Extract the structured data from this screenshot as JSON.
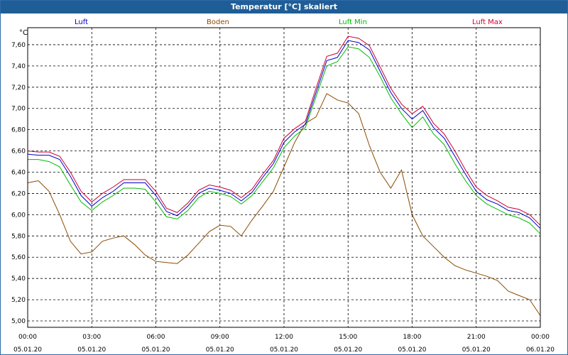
{
  "window": {
    "title": "Temperatur [°C] skaliert"
  },
  "colors": {
    "luft": "#0000cc",
    "boden": "#8b4a00",
    "luft_min": "#00bb00",
    "luft_max": "#cc0033",
    "title_bar": "#1f5d96",
    "grid": "#000000"
  },
  "chart_data": {
    "type": "line",
    "title": "Temperatur [°C] skaliert",
    "ylabel": "°C",
    "xlabel": "",
    "ylim": [
      4.94,
      7.76
    ],
    "yticks": [
      "5,00",
      "5,20",
      "5,40",
      "5,60",
      "5,80",
      "6,00",
      "6,20",
      "6,40",
      "6,60",
      "6,80",
      "7,00",
      "7,20",
      "7,40",
      "7,60"
    ],
    "xticks": [
      {
        "time": "00:00",
        "date": "05.01.20"
      },
      {
        "time": "03:00",
        "date": "05.01.20"
      },
      {
        "time": "06:00",
        "date": "05.01.20"
      },
      {
        "time": "09:00",
        "date": "05.01.20"
      },
      {
        "time": "12:00",
        "date": "05.01.20"
      },
      {
        "time": "15:00",
        "date": "05.01.20"
      },
      {
        "time": "18:00",
        "date": "05.01.20"
      },
      {
        "time": "21:00",
        "date": "05.01.20"
      },
      {
        "time": "00:00",
        "date": "06.01.20"
      }
    ],
    "grid": true,
    "legend_position": "top",
    "x_hours": [
      0,
      0.5,
      1,
      1.5,
      2,
      2.5,
      3,
      3.5,
      4,
      4.5,
      5,
      5.5,
      6,
      6.5,
      7,
      7.5,
      8,
      8.5,
      9,
      9.5,
      10,
      10.5,
      11,
      11.5,
      12,
      12.5,
      13,
      13.5,
      14,
      14.5,
      15,
      15.5,
      16,
      16.5,
      17,
      17.5,
      18,
      18.5,
      19,
      19.5,
      20,
      20.5,
      21,
      21.5,
      22,
      22.5,
      23,
      23.5,
      24
    ],
    "series": [
      {
        "name": "Luft",
        "color": "#0000cc",
        "values": [
          6.57,
          6.56,
          6.56,
          6.52,
          6.36,
          6.18,
          6.08,
          6.16,
          6.22,
          6.3,
          6.3,
          6.3,
          6.18,
          6.03,
          5.99,
          6.08,
          6.2,
          6.25,
          6.23,
          6.2,
          6.13,
          6.21,
          6.35,
          6.48,
          6.68,
          6.78,
          6.85,
          7.15,
          7.45,
          7.48,
          7.64,
          7.62,
          7.55,
          7.35,
          7.15,
          7.0,
          6.9,
          6.98,
          6.82,
          6.72,
          6.55,
          6.38,
          6.22,
          6.14,
          6.1,
          6.04,
          6.02,
          5.97,
          5.87
        ]
      },
      {
        "name": "Boden",
        "color": "#8b4a00",
        "values": [
          6.3,
          6.32,
          6.22,
          6.0,
          5.75,
          5.63,
          5.65,
          5.75,
          5.78,
          5.8,
          5.72,
          5.62,
          5.56,
          5.55,
          5.54,
          5.62,
          5.73,
          5.84,
          5.9,
          5.89,
          5.8,
          5.95,
          6.08,
          6.22,
          6.45,
          6.68,
          6.86,
          6.92,
          7.14,
          7.08,
          7.05,
          6.95,
          6.65,
          6.4,
          6.25,
          6.42,
          6.0,
          5.8,
          5.7,
          5.6,
          5.52,
          5.48,
          5.45,
          5.42,
          5.38,
          5.28,
          5.24,
          5.2,
          5.05
        ]
      },
      {
        "name": "Luft Min",
        "color": "#00bb00",
        "values": [
          6.52,
          6.52,
          6.5,
          6.45,
          6.28,
          6.12,
          6.04,
          6.12,
          6.18,
          6.25,
          6.25,
          6.24,
          6.12,
          5.98,
          5.96,
          6.04,
          6.16,
          6.22,
          6.2,
          6.17,
          6.1,
          6.18,
          6.31,
          6.44,
          6.63,
          6.74,
          6.82,
          7.11,
          7.4,
          7.44,
          7.58,
          7.56,
          7.48,
          7.3,
          7.1,
          6.95,
          6.82,
          6.92,
          6.76,
          6.66,
          6.48,
          6.32,
          6.18,
          6.1,
          6.05,
          6.0,
          5.97,
          5.92,
          5.82
        ]
      },
      {
        "name": "Luft Max",
        "color": "#cc0033",
        "values": [
          6.6,
          6.59,
          6.59,
          6.55,
          6.4,
          6.22,
          6.12,
          6.2,
          6.26,
          6.33,
          6.33,
          6.33,
          6.22,
          6.06,
          6.02,
          6.11,
          6.23,
          6.28,
          6.26,
          6.23,
          6.16,
          6.24,
          6.38,
          6.51,
          6.72,
          6.81,
          6.88,
          7.19,
          7.49,
          7.52,
          7.68,
          7.66,
          7.59,
          7.39,
          7.19,
          7.04,
          6.95,
          7.02,
          6.86,
          6.76,
          6.6,
          6.42,
          6.26,
          6.18,
          6.13,
          6.07,
          6.05,
          6.0,
          5.9
        ]
      }
    ]
  }
}
